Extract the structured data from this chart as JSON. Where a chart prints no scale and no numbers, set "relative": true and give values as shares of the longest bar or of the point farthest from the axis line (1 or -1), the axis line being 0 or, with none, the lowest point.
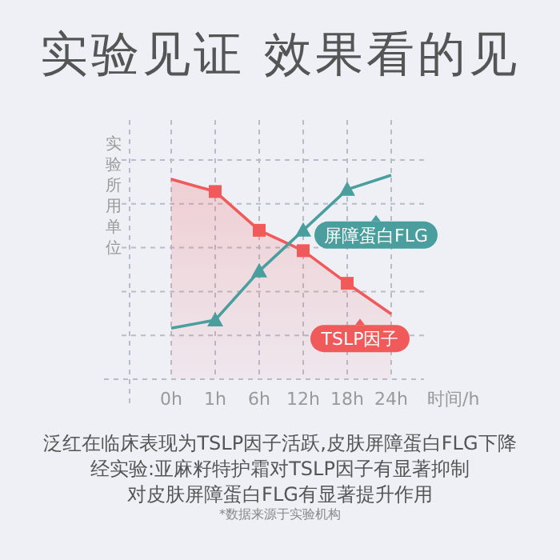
{
  "chart_data": {
    "type": "area",
    "title": "实验见证 效果看的见",
    "ylabel": "实验所用单位",
    "xlabel": "时间/h",
    "relative": true,
    "grid": true,
    "legend": "right",
    "categories": [
      "0h",
      "1h",
      "6h",
      "12h",
      "18h",
      "24h"
    ],
    "series": [
      {
        "name": "TSLP因子",
        "color": "#f05a5a",
        "marker": "square",
        "values": [
          0.98,
          0.92,
          0.73,
          0.63,
          0.47,
          0.32
        ]
      },
      {
        "name": "屏障蛋白FLG",
        "type": "line",
        "color": "#4a9e9e",
        "marker": "triangle",
        "values": [
          0.25,
          0.29,
          0.53,
          0.73,
          0.93,
          1.0
        ]
      }
    ],
    "annotations": [
      "泛红在临床表现为TSLP因子活跃,皮肤屏障蛋白FLG下降",
      "经实验:亚麻籽特护霜对TSLP因子有显著抑制",
      "对皮肤屏障蛋白FLG有显著提升作用",
      "*数据来源于实验机构"
    ]
  }
}
